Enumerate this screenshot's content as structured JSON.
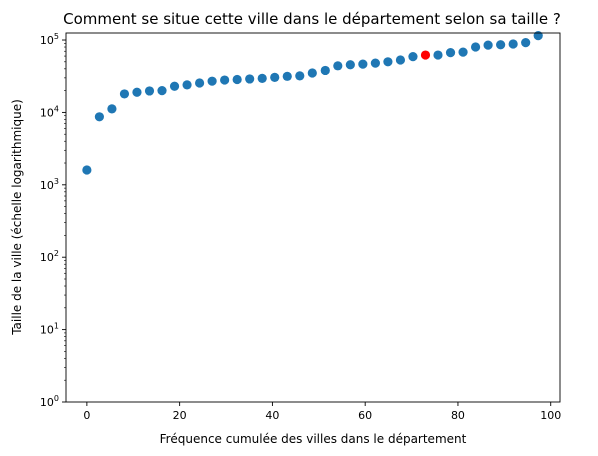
{
  "chart_data": {
    "type": "scatter",
    "title": "Comment se situe cette ville dans le département selon sa taille ?",
    "xlabel": "Fréquence cumulée des villes dans le département",
    "ylabel": "Taille de la ville (échelle logarithmique)",
    "yscale": "log",
    "xlim": [
      -4.5,
      102
    ],
    "ylim": [
      1,
      125000
    ],
    "grid": false,
    "x_ticks": [
      {
        "value": 0,
        "label": "0"
      },
      {
        "value": 20,
        "label": "20"
      },
      {
        "value": 40,
        "label": "40"
      },
      {
        "value": 60,
        "label": "60"
      },
      {
        "value": 80,
        "label": "80"
      },
      {
        "value": 100,
        "label": "100"
      }
    ],
    "y_ticks": [
      {
        "value": 1,
        "base": "10",
        "exp": "0"
      },
      {
        "value": 10,
        "base": "10",
        "exp": "1"
      },
      {
        "value": 100,
        "base": "10",
        "exp": "2"
      },
      {
        "value": 1000,
        "base": "10",
        "exp": "3"
      },
      {
        "value": 10000,
        "base": "10",
        "exp": "4"
      },
      {
        "value": 100000,
        "base": "10",
        "exp": "5"
      }
    ],
    "point_color": "#1f77b4",
    "highlight_color": "#ff0000",
    "series": [
      {
        "x": [
          0,
          2.7,
          5.4,
          8.1,
          10.8,
          13.5,
          16.2,
          18.9,
          21.6,
          24.3,
          27.0,
          29.7,
          32.4,
          35.1,
          37.8,
          40.5,
          43.2,
          45.9,
          48.6,
          51.4,
          54.1,
          56.8,
          59.5,
          62.2,
          64.9,
          67.6,
          70.3,
          75.7,
          78.4,
          81.1,
          83.8,
          86.5,
          89.2,
          91.9,
          94.6,
          97.3
        ],
        "y": [
          1600,
          8700,
          11200,
          18000,
          19000,
          19800,
          20000,
          23000,
          24000,
          25500,
          27000,
          28000,
          28500,
          29000,
          29500,
          30500,
          31500,
          32000,
          35000,
          38000,
          44000,
          45500,
          46500,
          48000,
          50000,
          53000,
          59000,
          62000,
          67000,
          68000,
          80000,
          85000,
          86000,
          88000,
          92000,
          115000
        ]
      },
      {
        "x": [
          73.0
        ],
        "y": [
          62000
        ]
      }
    ]
  }
}
